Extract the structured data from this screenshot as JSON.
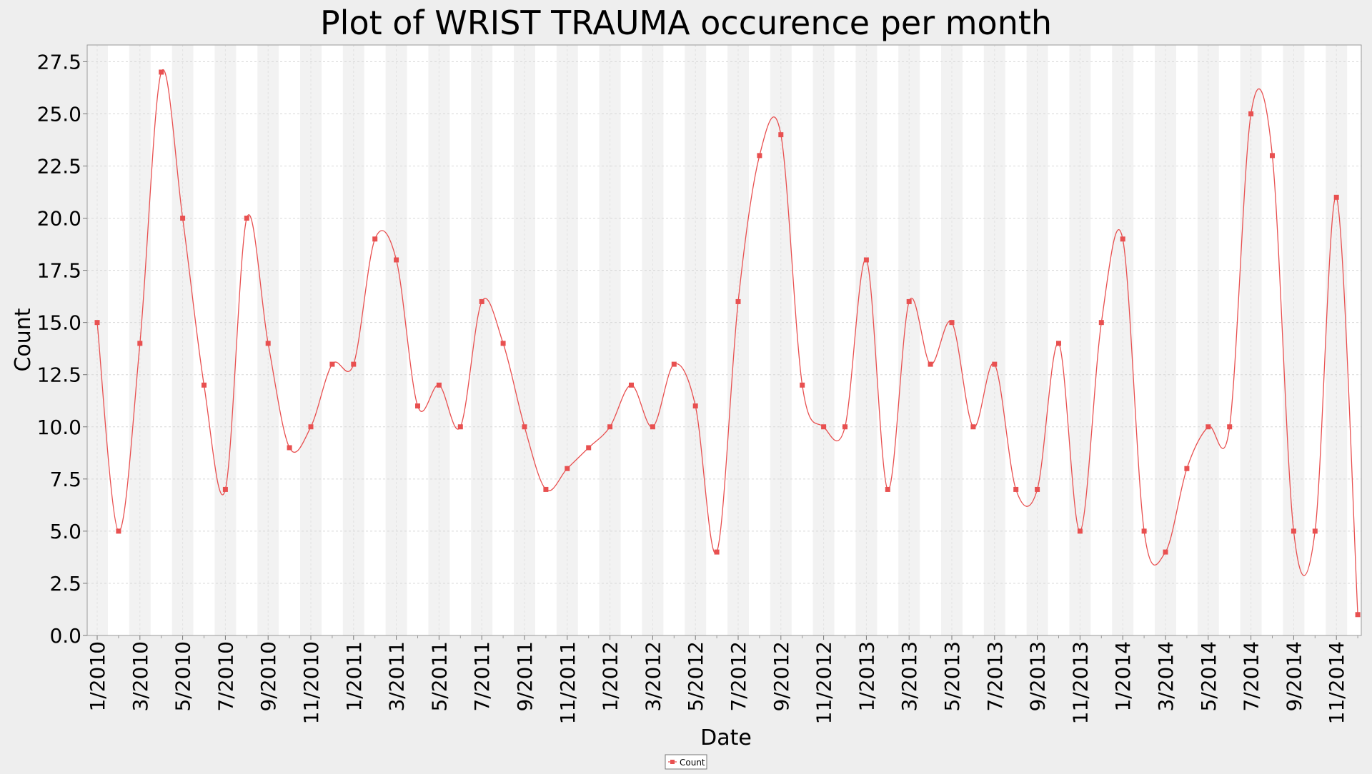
{
  "chart_data": {
    "type": "line",
    "title": "Plot of WRIST TRAUMA occurence per month",
    "xlabel": "Date",
    "ylabel": "Count",
    "ylim": [
      0,
      28.3
    ],
    "yticks": [
      "0.0",
      "2.5",
      "5.0",
      "7.5",
      "10.0",
      "12.5",
      "15.0",
      "17.5",
      "20.0",
      "22.5",
      "25.0",
      "27.5"
    ],
    "xtick_labels": [
      "1/2010",
      "3/2010",
      "5/2010",
      "7/2010",
      "9/2010",
      "11/2010",
      "1/2011",
      "3/2011",
      "5/2011",
      "7/2011",
      "9/2011",
      "11/2011",
      "1/2012",
      "3/2012",
      "5/2012",
      "7/2012",
      "9/2012",
      "11/2012",
      "1/2013",
      "3/2013",
      "5/2013",
      "7/2013",
      "9/2013",
      "11/2013",
      "1/2014",
      "3/2014",
      "5/2014",
      "7/2014",
      "9/2014",
      "11/2014"
    ],
    "grid": true,
    "legend": "bottom-center",
    "series": [
      {
        "name": "Count",
        "color": "#e85050",
        "x": [
          "1/2010",
          "2/2010",
          "3/2010",
          "4/2010",
          "5/2010",
          "6/2010",
          "7/2010",
          "8/2010",
          "9/2010",
          "10/2010",
          "11/2010",
          "12/2010",
          "1/2011",
          "2/2011",
          "3/2011",
          "4/2011",
          "5/2011",
          "6/2011",
          "7/2011",
          "8/2011",
          "9/2011",
          "10/2011",
          "11/2011",
          "12/2011",
          "1/2012",
          "2/2012",
          "3/2012",
          "4/2012",
          "5/2012",
          "6/2012",
          "7/2012",
          "8/2012",
          "9/2012",
          "10/2012",
          "11/2012",
          "12/2012",
          "1/2013",
          "2/2013",
          "3/2013",
          "4/2013",
          "5/2013",
          "6/2013",
          "7/2013",
          "8/2013",
          "9/2013",
          "10/2013",
          "11/2013",
          "12/2013",
          "1/2014",
          "2/2014",
          "3/2014",
          "4/2014",
          "5/2014",
          "6/2014",
          "7/2014",
          "8/2014",
          "9/2014",
          "10/2014",
          "11/2014",
          "12/2014"
        ],
        "values": [
          15,
          5,
          14,
          27,
          20,
          12,
          7,
          20,
          14,
          9,
          10,
          13,
          13,
          19,
          18,
          11,
          12,
          10,
          16,
          14,
          10,
          7,
          8,
          9,
          10,
          12,
          10,
          13,
          11,
          4,
          16,
          23,
          24,
          12,
          10,
          10,
          18,
          7,
          16,
          13,
          15,
          10,
          13,
          7,
          7,
          14,
          5,
          15,
          19,
          5,
          4,
          8,
          10,
          10,
          25,
          23,
          5,
          5,
          21,
          1
        ]
      }
    ]
  }
}
